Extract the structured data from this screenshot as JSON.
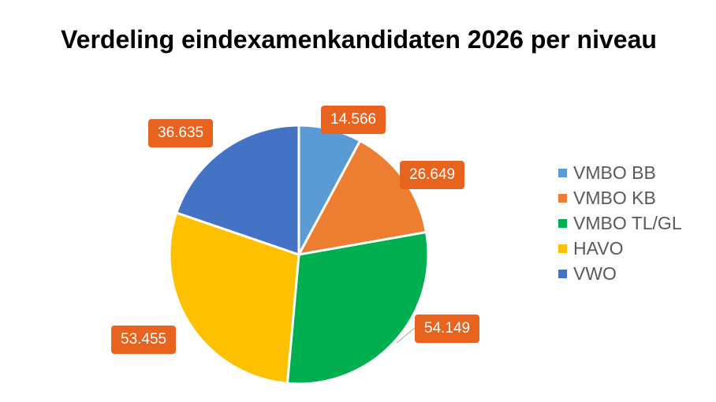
{
  "chart_data": {
    "type": "pie",
    "title": "Verdeling eindexamenkandidaten 2026 per niveau",
    "categories": [
      "VMBO BB",
      "VMBO KB",
      "VMBO TL/GL",
      "HAVO",
      "VWO"
    ],
    "values": [
      14566,
      26649,
      54149,
      53455,
      36635
    ],
    "data_labels": [
      "14.566",
      "26.649",
      "54.149",
      "53.455",
      "36.635"
    ],
    "colors": [
      "#5B9BD5",
      "#ED7D31",
      "#00B050",
      "#FFC000",
      "#4472C4"
    ],
    "label_color": "#E8641E",
    "legend_position": "right"
  }
}
